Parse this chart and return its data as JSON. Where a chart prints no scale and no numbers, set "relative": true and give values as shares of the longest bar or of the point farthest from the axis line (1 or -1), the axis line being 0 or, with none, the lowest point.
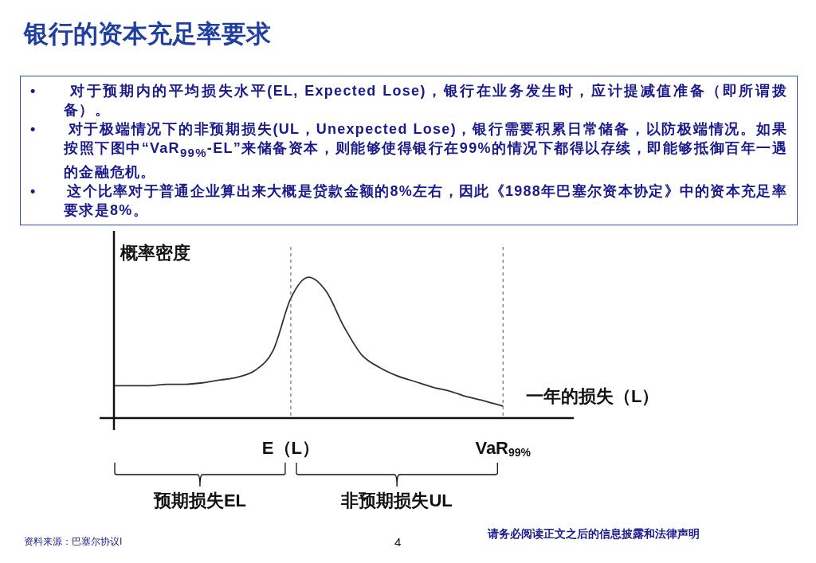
{
  "chart_data": {
    "type": "line",
    "title": "银行的资本充足率要求",
    "ylabel": "概率密度",
    "xlabel": "一年的损失（L）",
    "relative": true,
    "marker": "none",
    "line_style": "solid",
    "legend": false,
    "color": "#333333",
    "categories": [
      null,
      null,
      null,
      null,
      null,
      null,
      null,
      null,
      null,
      null,
      "E（L）",
      null,
      null,
      null,
      null,
      null,
      null,
      null,
      null,
      null,
      null,
      null,
      "VaR$_{99%}$",
      null,
      null,
      null,
      null
    ],
    "values": [
      0.23,
      0.23,
      0.23,
      0.24,
      0.24,
      0.25,
      0.27,
      0.29,
      0.34,
      0.48,
      0.85,
      1,
      0.9,
      0.65,
      0.45,
      0.36,
      0.3,
      0.26,
      0.22,
      0.19,
      0.15,
      0.12,
      0.085,
      null,
      null,
      null,
      null
    ],
    "ref_lines": [
      {
        "axis": "x",
        "value": "E（L）",
        "line_style": "dashed",
        "color": "#555555"
      },
      {
        "axis": "x",
        "value": "VaR$_{99%}$",
        "line_style": "dashed",
        "color": "#555555"
      }
    ],
    "annotations": [
      "•　　对于预期内的平均损失水平(EL, Expected Lose)，银行在业务发生时，应计提减值准备（即所谓拨备）。",
      "•　　对于极端情况下的非预期损失(UL，Unexpected Lose)，银行需要积累日常储备，以防极端情况。如果按照下图中“VaR$_{99%}$-EL”来储备资本，则能够使得银行在99%的情况下都得以存续，即能够抵御百年一遇的金融危机。",
      "•　　这个比率对于普通企业算出来大概是贷款金额的8%左右，因此《1988年巴塞尔资本协定》中的资本充足率要求是8%。",
      "预期损失EL",
      "非预期损失UL",
      "资料来源：巴塞尔协议I",
      "4",
      "请务必阅读正文之后的信息披露和法律声明"
    ]
  }
}
